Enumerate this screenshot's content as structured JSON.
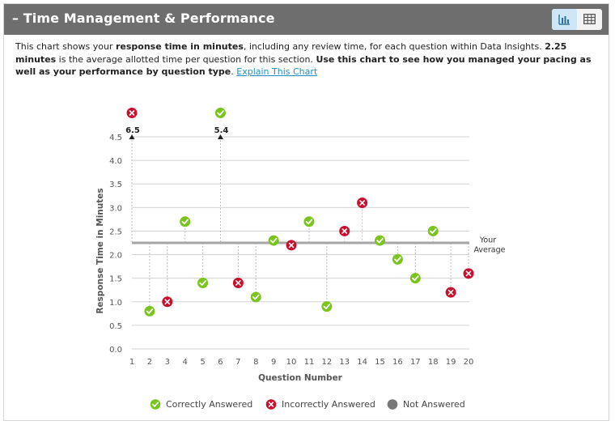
{
  "header": {
    "title": "– Time Management & Performance",
    "chart_view_label": "Chart view",
    "table_view_label": "Table view"
  },
  "description": {
    "p1": "This chart shows your ",
    "b1": "response time in minutes",
    "p2": ", including any review time, for each question within Data Insights. ",
    "b2": "2.25 minutes",
    "p3": " is the average allotted time per question for this section. ",
    "b3": "Use this chart to see how you managed your pacing as well as your performance by question type",
    "p4": ". ",
    "link": "Explain This Chart"
  },
  "legend": {
    "correct": "Correctly Answered",
    "incorrect": "Incorrectly Answered",
    "not_answered": "Not Answered"
  },
  "colors": {
    "correct": "#7ac41e",
    "incorrect": "#c8102e",
    "not_answered": "#777777",
    "average_line": "#a6a6a6",
    "header_bg": "#6e6e6e"
  },
  "chart_data": {
    "type": "scatter",
    "xlabel": "Question Number",
    "ylabel": "Response Time in Minutes",
    "x_ticks": [
      1,
      2,
      3,
      4,
      5,
      6,
      7,
      8,
      9,
      10,
      11,
      12,
      13,
      14,
      15,
      16,
      17,
      18,
      19,
      20
    ],
    "y_ticks": [
      "0.0",
      "0.5",
      "1.0",
      "1.5",
      "2.0",
      "2.5",
      "3.0",
      "3.5",
      "4.0",
      "4.5"
    ],
    "xlim": [
      1,
      20
    ],
    "ylim": [
      0,
      4.5
    ],
    "grid": true,
    "average": {
      "value": 2.25,
      "label_line1": "Your",
      "label_line2": "Average"
    },
    "points": [
      {
        "q": 1,
        "time": 6.5,
        "status": "incorrect",
        "overflow_label": "6.5"
      },
      {
        "q": 2,
        "time": 0.8,
        "status": "correct"
      },
      {
        "q": 3,
        "time": 1.0,
        "status": "incorrect"
      },
      {
        "q": 4,
        "time": 2.7,
        "status": "correct"
      },
      {
        "q": 5,
        "time": 1.4,
        "status": "correct"
      },
      {
        "q": 6,
        "time": 5.4,
        "status": "correct",
        "overflow_label": "5.4"
      },
      {
        "q": 7,
        "time": 1.4,
        "status": "incorrect"
      },
      {
        "q": 8,
        "time": 1.1,
        "status": "correct"
      },
      {
        "q": 9,
        "time": 2.3,
        "status": "correct"
      },
      {
        "q": 10,
        "time": 2.2,
        "status": "incorrect"
      },
      {
        "q": 11,
        "time": 2.7,
        "status": "correct"
      },
      {
        "q": 12,
        "time": 0.9,
        "status": "correct"
      },
      {
        "q": 13,
        "time": 2.5,
        "status": "incorrect"
      },
      {
        "q": 14,
        "time": 3.1,
        "status": "incorrect"
      },
      {
        "q": 15,
        "time": 2.3,
        "status": "correct"
      },
      {
        "q": 16,
        "time": 1.9,
        "status": "correct"
      },
      {
        "q": 17,
        "time": 1.5,
        "status": "correct"
      },
      {
        "q": 18,
        "time": 2.5,
        "status": "correct"
      },
      {
        "q": 19,
        "time": 1.2,
        "status": "incorrect"
      },
      {
        "q": 20,
        "time": 1.6,
        "status": "incorrect"
      }
    ]
  }
}
